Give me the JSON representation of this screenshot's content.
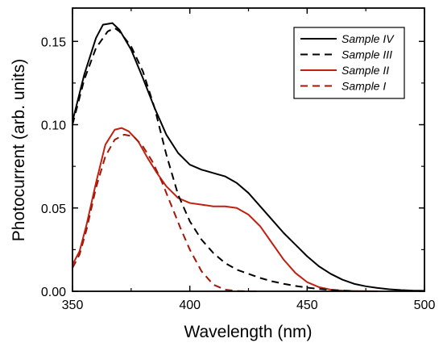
{
  "chart_data": {
    "type": "line",
    "title": "",
    "xlabel": "Wavelength (nm)",
    "ylabel": "Photocurrent (arb. units)",
    "xlim": [
      350,
      500
    ],
    "ylim": [
      0,
      0.17
    ],
    "xticks": [
      350,
      400,
      450,
      500
    ],
    "xtick_labels": [
      "350",
      "400",
      "450",
      "500"
    ],
    "yticks": [
      0,
      0.05,
      0.1,
      0.15
    ],
    "ytick_labels": [
      "0.00",
      "0.05",
      "0.10",
      "0.15"
    ],
    "grid": false,
    "legend_position": "top-right",
    "series": [
      {
        "name": "Sample IV",
        "color": "#000000",
        "dash": "solid",
        "x": [
          350,
          355,
          360,
          363,
          367,
          370,
          375,
          380,
          385,
          390,
          395,
          400,
          405,
          410,
          415,
          420,
          425,
          430,
          435,
          440,
          445,
          450,
          455,
          460,
          465,
          470,
          475,
          480,
          485,
          490,
          495,
          500
        ],
        "y": [
          0.102,
          0.13,
          0.152,
          0.16,
          0.161,
          0.157,
          0.145,
          0.128,
          0.11,
          0.094,
          0.083,
          0.076,
          0.073,
          0.071,
          0.069,
          0.065,
          0.059,
          0.051,
          0.043,
          0.035,
          0.028,
          0.021,
          0.015,
          0.0105,
          0.007,
          0.0045,
          0.003,
          0.002,
          0.0012,
          0.0007,
          0.0004,
          0.0003
        ]
      },
      {
        "name": "Sample III",
        "color": "#000000",
        "dash": "dashed",
        "x": [
          350,
          355,
          360,
          365,
          368,
          370,
          375,
          380,
          385,
          390,
          395,
          400,
          405,
          410,
          415,
          420,
          425,
          430,
          435,
          440,
          445,
          450,
          455,
          460,
          465,
          470
        ],
        "y": [
          0.1,
          0.127,
          0.146,
          0.156,
          0.158,
          0.156,
          0.147,
          0.132,
          0.11,
          0.082,
          0.058,
          0.042,
          0.031,
          0.023,
          0.017,
          0.013,
          0.0105,
          0.008,
          0.006,
          0.0045,
          0.0032,
          0.0022,
          0.0014,
          0.0008,
          0.0004,
          0.0002
        ]
      },
      {
        "name": "Sample II",
        "color": "#c02010",
        "dash": "solid",
        "x": [
          350,
          353,
          356,
          360,
          364,
          368,
          371,
          374,
          378,
          382,
          386,
          390,
          395,
          400,
          405,
          410,
          415,
          420,
          425,
          430,
          435,
          440,
          445,
          450,
          455,
          460,
          465,
          470,
          475,
          480
        ],
        "y": [
          0.016,
          0.024,
          0.04,
          0.065,
          0.088,
          0.097,
          0.098,
          0.096,
          0.09,
          0.08,
          0.071,
          0.063,
          0.056,
          0.053,
          0.052,
          0.051,
          0.051,
          0.05,
          0.046,
          0.039,
          0.029,
          0.019,
          0.011,
          0.0055,
          0.0025,
          0.001,
          0.0004,
          0.0002,
          0.0001,
          0
        ]
      },
      {
        "name": "Sample I",
        "color": "#a01808",
        "dash": "dashed",
        "x": [
          350,
          353,
          356,
          360,
          364,
          368,
          372,
          376,
          380,
          384,
          388,
          392,
          396,
          400,
          405,
          410,
          415,
          420,
          425,
          430
        ],
        "y": [
          0.014,
          0.022,
          0.037,
          0.062,
          0.081,
          0.091,
          0.094,
          0.093,
          0.087,
          0.078,
          0.066,
          0.052,
          0.038,
          0.025,
          0.012,
          0.004,
          0.001,
          0.0002,
          0,
          0
        ]
      }
    ]
  }
}
